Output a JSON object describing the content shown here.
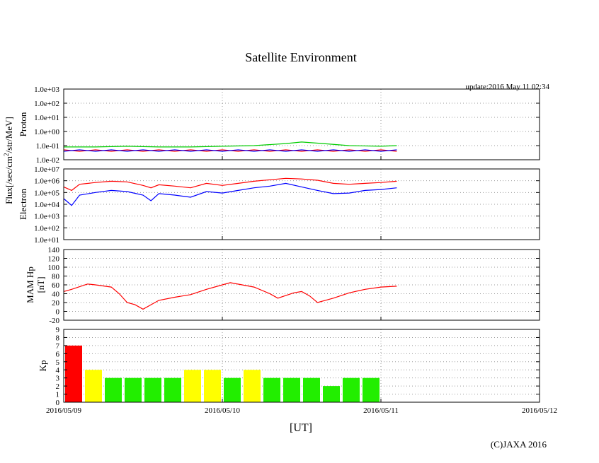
{
  "title": "Satellite Environment",
  "update": "update:2016 May 11 02:34",
  "copyright": "(C)JAXA 2016",
  "xlabel": "[UT]",
  "shared_ylabel": "Flux[/sec/cm",
  "shared_ylabel_sup": "2",
  "shared_ylabel_tail": "/str/MeV]",
  "x_ticks": [
    "2016/05/09",
    "2016/05/10",
    "2016/05/11",
    "2016/05/12"
  ],
  "colors": {
    "red": "#ff0000",
    "green": "#00cc00",
    "blue": "#0000ff",
    "yellow": "#ffff00",
    "kp_green": "#22ee00"
  },
  "chart_data": [
    {
      "type": "line",
      "name": "proton",
      "ylabel": "Proton",
      "yscale": "log",
      "ylim": [
        0.01,
        1000
      ],
      "xlim": [
        0,
        3
      ],
      "y_ticks": [
        {
          "v": 0.01,
          "label": "1.0e-02"
        },
        {
          "v": 0.1,
          "label": "1.0e-01"
        },
        {
          "v": 1,
          "label": "1.0e+00"
        },
        {
          "v": 10,
          "label": "1.0e+01"
        },
        {
          "v": 100,
          "label": "1.0e+02"
        },
        {
          "v": 1000,
          "label": "1.0e+03"
        }
      ],
      "grid": true,
      "series": [
        {
          "color": "#ff0000",
          "x": [
            0,
            0.1,
            0.2,
            0.3,
            0.4,
            0.5,
            0.6,
            0.7,
            0.8,
            0.9,
            1.0,
            1.1,
            1.2,
            1.3,
            1.4,
            1.5,
            1.6,
            1.7,
            1.8,
            1.9,
            2.0,
            2.1
          ],
          "y": [
            0.05,
            0.04,
            0.05,
            0.04,
            0.05,
            0.04,
            0.05,
            0.04,
            0.05,
            0.04,
            0.05,
            0.04,
            0.05,
            0.04,
            0.05,
            0.04,
            0.05,
            0.04,
            0.05,
            0.04,
            0.05,
            0.04
          ]
        },
        {
          "color": "#00cc00",
          "x": [
            0,
            0.2,
            0.4,
            0.6,
            0.8,
            1.0,
            1.2,
            1.4,
            1.5,
            1.6,
            1.8,
            2.0,
            2.1
          ],
          "y": [
            0.08,
            0.08,
            0.09,
            0.08,
            0.08,
            0.09,
            0.1,
            0.14,
            0.18,
            0.15,
            0.1,
            0.09,
            0.1
          ]
        },
        {
          "color": "#0000ff",
          "x": [
            0,
            0.1,
            0.2,
            0.3,
            0.4,
            0.5,
            0.6,
            0.7,
            0.8,
            0.9,
            1.0,
            1.1,
            1.2,
            1.3,
            1.4,
            1.5,
            1.6,
            1.7,
            1.8,
            1.9,
            2.0,
            2.1
          ],
          "y": [
            0.04,
            0.05,
            0.04,
            0.05,
            0.04,
            0.05,
            0.04,
            0.05,
            0.04,
            0.05,
            0.04,
            0.05,
            0.04,
            0.05,
            0.04,
            0.05,
            0.04,
            0.05,
            0.04,
            0.05,
            0.04,
            0.05
          ]
        }
      ]
    },
    {
      "type": "line",
      "name": "electron",
      "ylabel": "Electron",
      "yscale": "log",
      "ylim": [
        10,
        10000000
      ],
      "xlim": [
        0,
        3
      ],
      "y_ticks": [
        {
          "v": 10,
          "label": "1.0e+01"
        },
        {
          "v": 100,
          "label": "1.0e+02"
        },
        {
          "v": 1000,
          "label": "1.0e+03"
        },
        {
          "v": 10000,
          "label": "1.0e+04"
        },
        {
          "v": 100000,
          "label": "1.0e+05"
        },
        {
          "v": 1000000,
          "label": "1.0e+06"
        },
        {
          "v": 10000000,
          "label": "1.0e+07"
        }
      ],
      "grid": true,
      "series": [
        {
          "color": "#ff0000",
          "x": [
            0,
            0.05,
            0.1,
            0.2,
            0.3,
            0.4,
            0.5,
            0.55,
            0.6,
            0.7,
            0.8,
            0.9,
            1.0,
            1.1,
            1.2,
            1.3,
            1.4,
            1.5,
            1.6,
            1.7,
            1.8,
            1.9,
            2.0,
            2.1
          ],
          "y": [
            300000,
            150000,
            500000,
            700000,
            900000,
            800000,
            400000,
            250000,
            450000,
            350000,
            250000,
            600000,
            400000,
            600000,
            900000,
            1200000,
            1600000,
            1400000,
            1100000,
            600000,
            500000,
            600000,
            700000,
            900000
          ]
        },
        {
          "color": "#0000ff",
          "x": [
            0,
            0.05,
            0.1,
            0.2,
            0.3,
            0.4,
            0.5,
            0.55,
            0.6,
            0.7,
            0.8,
            0.9,
            1.0,
            1.1,
            1.2,
            1.3,
            1.4,
            1.5,
            1.6,
            1.7,
            1.8,
            1.9,
            2.0,
            2.1
          ],
          "y": [
            30000,
            8000,
            60000,
            100000,
            150000,
            120000,
            60000,
            20000,
            80000,
            60000,
            40000,
            120000,
            90000,
            150000,
            250000,
            350000,
            600000,
            300000,
            150000,
            80000,
            90000,
            150000,
            180000,
            250000
          ]
        }
      ]
    },
    {
      "type": "line",
      "name": "mam-hp",
      "ylabel": "MAM Hp",
      "ylabel2": "[nT]",
      "ylim": [
        -20,
        140
      ],
      "xlim": [
        0,
        3
      ],
      "y_ticks": [
        {
          "v": -20,
          "label": "-20"
        },
        {
          "v": 0,
          "label": "0"
        },
        {
          "v": 20,
          "label": "20"
        },
        {
          "v": 40,
          "label": "40"
        },
        {
          "v": 60,
          "label": "60"
        },
        {
          "v": 80,
          "label": "80"
        },
        {
          "v": 100,
          "label": "100"
        },
        {
          "v": 120,
          "label": "120"
        },
        {
          "v": 140,
          "label": "140"
        }
      ],
      "grid": true,
      "series": [
        {
          "color": "#ff0000",
          "x": [
            0,
            0.05,
            0.15,
            0.2,
            0.3,
            0.35,
            0.4,
            0.45,
            0.5,
            0.55,
            0.6,
            0.7,
            0.8,
            0.9,
            1.0,
            1.05,
            1.2,
            1.3,
            1.35,
            1.45,
            1.5,
            1.55,
            1.6,
            1.7,
            1.8,
            1.9,
            2.0,
            2.1
          ],
          "y": [
            45,
            50,
            62,
            60,
            55,
            40,
            20,
            15,
            5,
            15,
            25,
            32,
            38,
            50,
            60,
            65,
            55,
            40,
            30,
            42,
            45,
            35,
            20,
            30,
            42,
            50,
            55,
            57
          ]
        }
      ]
    },
    {
      "type": "bar",
      "name": "kp",
      "ylabel": "Kp",
      "ylim": [
        0,
        9
      ],
      "xlim": [
        0,
        3
      ],
      "y_ticks": [
        {
          "v": 0,
          "label": "0"
        },
        {
          "v": 1,
          "label": "1"
        },
        {
          "v": 2,
          "label": "2"
        },
        {
          "v": 3,
          "label": "3"
        },
        {
          "v": 4,
          "label": "4"
        },
        {
          "v": 5,
          "label": "5"
        },
        {
          "v": 6,
          "label": "6"
        },
        {
          "v": 7,
          "label": "7"
        },
        {
          "v": 8,
          "label": "8"
        },
        {
          "v": 9,
          "label": "9"
        }
      ],
      "grid": true,
      "bar_interval_days": 0.125,
      "values": [
        7,
        4,
        3,
        3,
        3,
        3,
        4,
        4,
        3,
        4,
        3,
        3,
        3,
        2,
        3,
        3
      ],
      "bar_colors": [
        "#ff0000",
        "#ffff00",
        "#22ee00",
        "#22ee00",
        "#22ee00",
        "#22ee00",
        "#ffff00",
        "#ffff00",
        "#22ee00",
        "#ffff00",
        "#22ee00",
        "#22ee00",
        "#22ee00",
        "#22ee00",
        "#22ee00",
        "#22ee00"
      ]
    }
  ]
}
